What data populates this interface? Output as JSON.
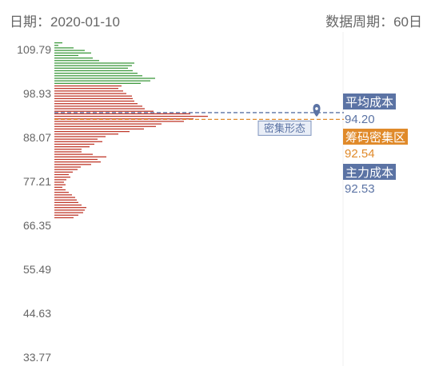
{
  "header": {
    "date_label": "日期：2020-01-10",
    "period_label": "数据周期：60日"
  },
  "chart_data": {
    "type": "bar",
    "orientation": "horizontal",
    "y_ticks": [
      "109.79",
      "98.93",
      "88.07",
      "77.21",
      "66.35",
      "55.49",
      "44.63",
      "33.77"
    ],
    "ylim": [
      33.77,
      109.79
    ],
    "series": [
      {
        "color": "#3f9a3f",
        "y": [
          111.46,
          110.83,
          110.21,
          109.58,
          108.95,
          108.33,
          107.7,
          107.08,
          106.45,
          105.82,
          105.2,
          104.57,
          103.94,
          103.32,
          102.69,
          102.07,
          101.44
        ],
        "values": [
          10,
          5,
          24,
          38,
          46,
          30,
          48,
          56,
          100,
          97,
          92,
          98,
          104,
          110,
          126,
          120,
          108
        ]
      },
      {
        "color": "#c0392b",
        "y": [
          100.81,
          100.19,
          99.56,
          98.93,
          98.31,
          97.68,
          97.06,
          96.43,
          95.8,
          95.18,
          94.55,
          93.92,
          93.3,
          92.67,
          92.05,
          91.42,
          90.79,
          90.17,
          89.54,
          88.92,
          88.29,
          87.66,
          87.04,
          86.41,
          85.78,
          85.16,
          84.53,
          83.91,
          83.28,
          82.65,
          82.03,
          81.4,
          80.77,
          80.15,
          79.52,
          78.9,
          78.27,
          77.64,
          77.02,
          76.39,
          75.76,
          75.14,
          74.51,
          73.89,
          73.26,
          72.63,
          72.01,
          71.38,
          70.76,
          70.13,
          69.5,
          68.88,
          68.25
        ],
        "values": [
          84,
          80,
          86,
          90,
          97,
          98,
          100,
          104,
          110,
          113,
          124,
          170,
          192,
          174,
          162,
          134,
          127,
          112,
          94,
          80,
          64,
          54,
          60,
          50,
          44,
          34,
          34,
          48,
          65,
          54,
          58,
          46,
          33,
          29,
          23,
          18,
          20,
          15,
          12,
          14,
          10,
          14,
          18,
          22,
          26,
          28,
          30,
          34,
          40,
          38,
          36,
          30,
          24
        ]
      }
    ],
    "avg_cost": {
      "label": "平均成本",
      "value": "94.20"
    },
    "chip_zone": {
      "label": "筹码密集区",
      "value": "92.54"
    },
    "main_cost": {
      "label": "主力成本",
      "value": "92.53"
    },
    "dense_shape_label": "密集形态",
    "colors": {
      "avg_cost": "#5b73a4",
      "chip_zone": "#e08a2a",
      "main_cost": "#5b73a4",
      "axis_text": "#666666",
      "divider": "#efefef"
    }
  }
}
